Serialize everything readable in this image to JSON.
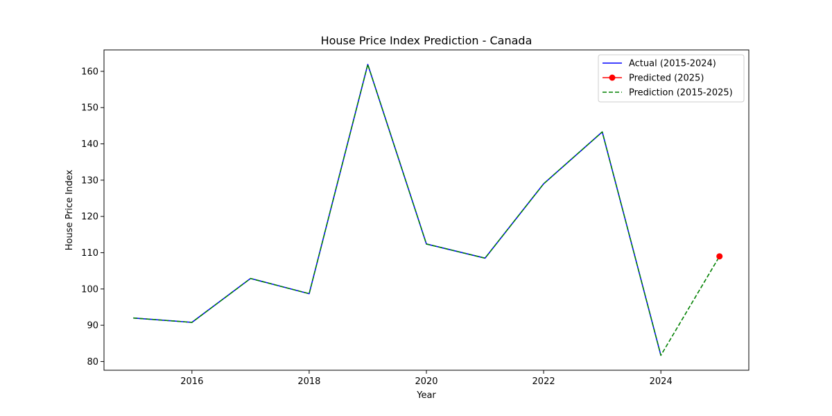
{
  "chart_data": {
    "type": "line",
    "title": "House Price Index Prediction - Canada",
    "xlabel": "Year",
    "ylabel": "House Price Index",
    "xlim": [
      2014.5,
      2025.5
    ],
    "ylim": [
      77.6,
      165.9
    ],
    "xticks": [
      2016,
      2018,
      2020,
      2022,
      2024
    ],
    "yticks": [
      80,
      90,
      100,
      110,
      120,
      130,
      140,
      150,
      160
    ],
    "grid": false,
    "legend_position": "top-right",
    "series": [
      {
        "name": "Actual (2015-2024)",
        "color": "#0000ff",
        "style": "solid",
        "x": [
          2015,
          2016,
          2017,
          2018,
          2019,
          2020,
          2021,
          2022,
          2023,
          2024
        ],
        "y": [
          92.0,
          90.8,
          102.9,
          98.7,
          161.9,
          112.4,
          108.5,
          129.0,
          143.3,
          81.7
        ]
      },
      {
        "name": "Predicted (2025)",
        "color": "#ff0000",
        "style": "marker",
        "x": [
          2025
        ],
        "y": [
          109.0
        ]
      },
      {
        "name": "Prediction (2015-2025)",
        "color": "#008000",
        "style": "dashed",
        "x": [
          2015,
          2016,
          2017,
          2018,
          2019,
          2020,
          2021,
          2022,
          2023,
          2024,
          2025
        ],
        "y": [
          92.0,
          90.8,
          102.9,
          98.7,
          161.9,
          112.4,
          108.5,
          129.0,
          143.3,
          81.7,
          109.0
        ]
      }
    ]
  }
}
